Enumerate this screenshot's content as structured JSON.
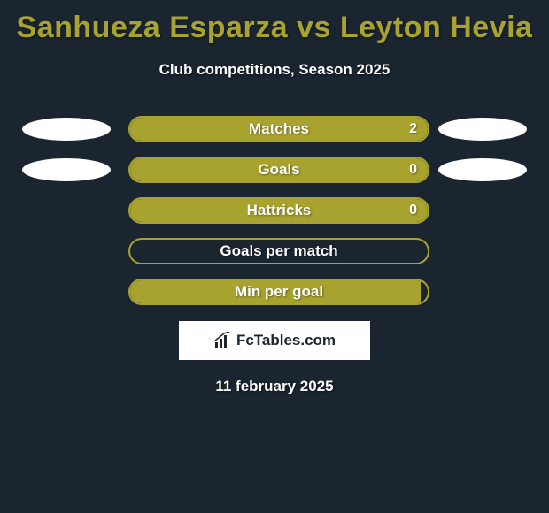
{
  "title": "Sanhueza Esparza vs Leyton Hevia",
  "subtitle": "Club competitions, Season 2025",
  "date": "11 february 2025",
  "logo_text": "FcTables.com",
  "colors": {
    "bg": "#1a2530",
    "accent": "#a8a32f",
    "white": "#ffffff"
  },
  "stats": [
    {
      "label": "Matches",
      "value": "2",
      "fill_pct": 100,
      "show_value": true,
      "left_oval": true,
      "right_oval": true
    },
    {
      "label": "Goals",
      "value": "0",
      "fill_pct": 100,
      "show_value": true,
      "left_oval": true,
      "right_oval": true
    },
    {
      "label": "Hattricks",
      "value": "0",
      "fill_pct": 100,
      "show_value": true,
      "left_oval": false,
      "right_oval": false
    },
    {
      "label": "Goals per match",
      "value": "",
      "fill_pct": 0,
      "show_value": false,
      "left_oval": false,
      "right_oval": false
    },
    {
      "label": "Min per goal",
      "value": "",
      "fill_pct": 98,
      "show_value": false,
      "left_oval": false,
      "right_oval": false
    }
  ]
}
